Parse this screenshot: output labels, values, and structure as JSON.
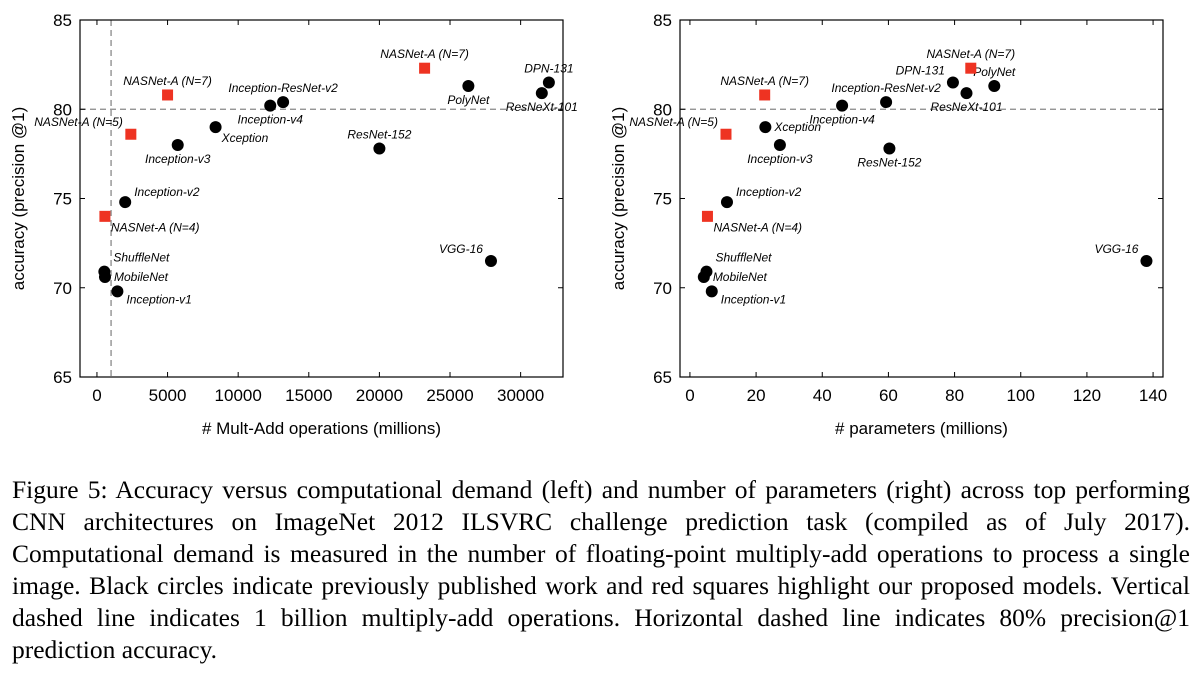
{
  "colors": {
    "published": "#000000",
    "proposed": "#ee3322",
    "reference_line": "#888888"
  },
  "chart_data": [
    {
      "type": "scatter",
      "title": "",
      "xlabel": "# Mult-Add operations (millions)",
      "ylabel": "accuracy (precision @1)",
      "xlim": [
        -1200,
        33000
      ],
      "ylim": [
        65,
        85
      ],
      "xticks": [
        0,
        5000,
        10000,
        15000,
        20000,
        25000,
        30000
      ],
      "xtick_labels": [
        "0",
        "5000",
        "10000",
        "15000",
        "20000",
        "25000",
        "30000"
      ],
      "yticks": [
        65,
        70,
        75,
        80,
        85
      ],
      "ytick_labels": [
        "65",
        "70",
        "75",
        "80",
        "85"
      ],
      "ref_x": 1000,
      "ref_y": 80,
      "series": [
        {
          "name": "published",
          "marker": "circle",
          "points": [
            {
              "label": "Inception-v1",
              "x": 1448,
              "y": 69.8,
              "anchor": "right-below"
            },
            {
              "label": "MobileNet",
              "x": 569,
              "y": 70.6,
              "anchor": "right"
            },
            {
              "label": "ShuffleNet",
              "x": 524,
              "y": 70.9,
              "anchor": "right-above"
            },
            {
              "label": "Inception-v2",
              "x": 2000,
              "y": 74.8,
              "anchor": "right-up"
            },
            {
              "label": "Inception-v3",
              "x": 5720,
              "y": 78.0,
              "anchor": "below"
            },
            {
              "label": "Xception",
              "x": 8400,
              "y": 79.0,
              "anchor": "below-right"
            },
            {
              "label": "Inception-v4",
              "x": 12270,
              "y": 80.2,
              "anchor": "below"
            },
            {
              "label": "Inception-ResNet-v2",
              "x": 13180,
              "y": 80.4,
              "anchor": "above"
            },
            {
              "label": "ResNet-152",
              "x": 20000,
              "y": 77.8,
              "anchor": "above"
            },
            {
              "label": "VGG-16",
              "x": 27900,
              "y": 71.5,
              "anchor": "above-left"
            },
            {
              "label": "PolyNet",
              "x": 26300,
              "y": 81.3,
              "anchor": "below"
            },
            {
              "label": "ResNeXt-101",
              "x": 31500,
              "y": 80.9,
              "anchor": "below"
            },
            {
              "label": "DPN-131",
              "x": 32000,
              "y": 81.5,
              "anchor": "above"
            }
          ]
        },
        {
          "name": "proposed",
          "marker": "square",
          "points": [
            {
              "label": "NASNet-A (N=4)",
              "x": 564,
              "y": 74.0,
              "anchor": "below-right"
            },
            {
              "label": "NASNet-A (N=5)",
              "x": 2400,
              "y": 78.6,
              "anchor": "above-left"
            },
            {
              "label": "NASNet-A (N=7)",
              "x": 5000,
              "y": 80.8,
              "anchor": "above"
            },
            {
              "label": "NASNet-A (N=7)",
              "x": 23200,
              "y": 82.3,
              "anchor": "above"
            }
          ]
        }
      ]
    },
    {
      "type": "scatter",
      "title": "",
      "xlabel": "# parameters (millions)",
      "ylabel": "accuracy (precision @1)",
      "xlim": [
        -3,
        143
      ],
      "ylim": [
        65,
        85
      ],
      "xticks": [
        0,
        20,
        40,
        60,
        80,
        100,
        120,
        140
      ],
      "xtick_labels": [
        "0",
        "20",
        "40",
        "60",
        "80",
        "100",
        "120",
        "140"
      ],
      "yticks": [
        65,
        70,
        75,
        80,
        85
      ],
      "ytick_labels": [
        "65",
        "70",
        "75",
        "80",
        "85"
      ],
      "ref_y": 80,
      "series": [
        {
          "name": "published",
          "marker": "circle",
          "points": [
            {
              "label": "Inception-v1",
              "x": 6.6,
              "y": 69.8,
              "anchor": "right-below"
            },
            {
              "label": "MobileNet",
              "x": 4.2,
              "y": 70.6,
              "anchor": "right"
            },
            {
              "label": "ShuffleNet",
              "x": 5.0,
              "y": 70.9,
              "anchor": "right-above"
            },
            {
              "label": "Inception-v2",
              "x": 11.2,
              "y": 74.8,
              "anchor": "right-up"
            },
            {
              "label": "Xception",
              "x": 22.8,
              "y": 79.0,
              "anchor": "right"
            },
            {
              "label": "Inception-v3",
              "x": 27.2,
              "y": 78.0,
              "anchor": "below"
            },
            {
              "label": "Inception-v4",
              "x": 46.0,
              "y": 80.2,
              "anchor": "below"
            },
            {
              "label": "Inception-ResNet-v2",
              "x": 59.3,
              "y": 80.4,
              "anchor": "above"
            },
            {
              "label": "ResNet-152",
              "x": 60.3,
              "y": 77.8,
              "anchor": "below"
            },
            {
              "label": "DPN-131",
              "x": 79.5,
              "y": 81.5,
              "anchor": "above-left"
            },
            {
              "label": "ResNeXt-101",
              "x": 83.6,
              "y": 80.9,
              "anchor": "below"
            },
            {
              "label": "PolyNet",
              "x": 92.0,
              "y": 81.3,
              "anchor": "above"
            },
            {
              "label": "VGG-16",
              "x": 138.0,
              "y": 71.5,
              "anchor": "above-left"
            }
          ]
        },
        {
          "name": "proposed",
          "marker": "square",
          "points": [
            {
              "label": "NASNet-A (N=4)",
              "x": 5.3,
              "y": 74.0,
              "anchor": "below-right"
            },
            {
              "label": "NASNet-A (N=5)",
              "x": 10.9,
              "y": 78.6,
              "anchor": "above-left"
            },
            {
              "label": "NASNet-A (N=7)",
              "x": 22.6,
              "y": 80.8,
              "anchor": "above"
            },
            {
              "label": "NASNet-A (N=7)",
              "x": 84.9,
              "y": 82.3,
              "anchor": "above"
            }
          ]
        }
      ]
    }
  ],
  "caption": "Figure 5: Accuracy versus computational demand (left) and number of parameters (right) across top performing CNN architectures on ImageNet 2012 ILSVRC challenge prediction task (compiled as of July 2017). Computational demand is measured in the number of floating-point multiply-add operations to process a single image. Black circles indicate previously published work and red squares highlight our proposed models. Vertical dashed line indicates 1 billion multiply-add operations. Horizontal dashed line indicates 80% precision@1 prediction accuracy."
}
